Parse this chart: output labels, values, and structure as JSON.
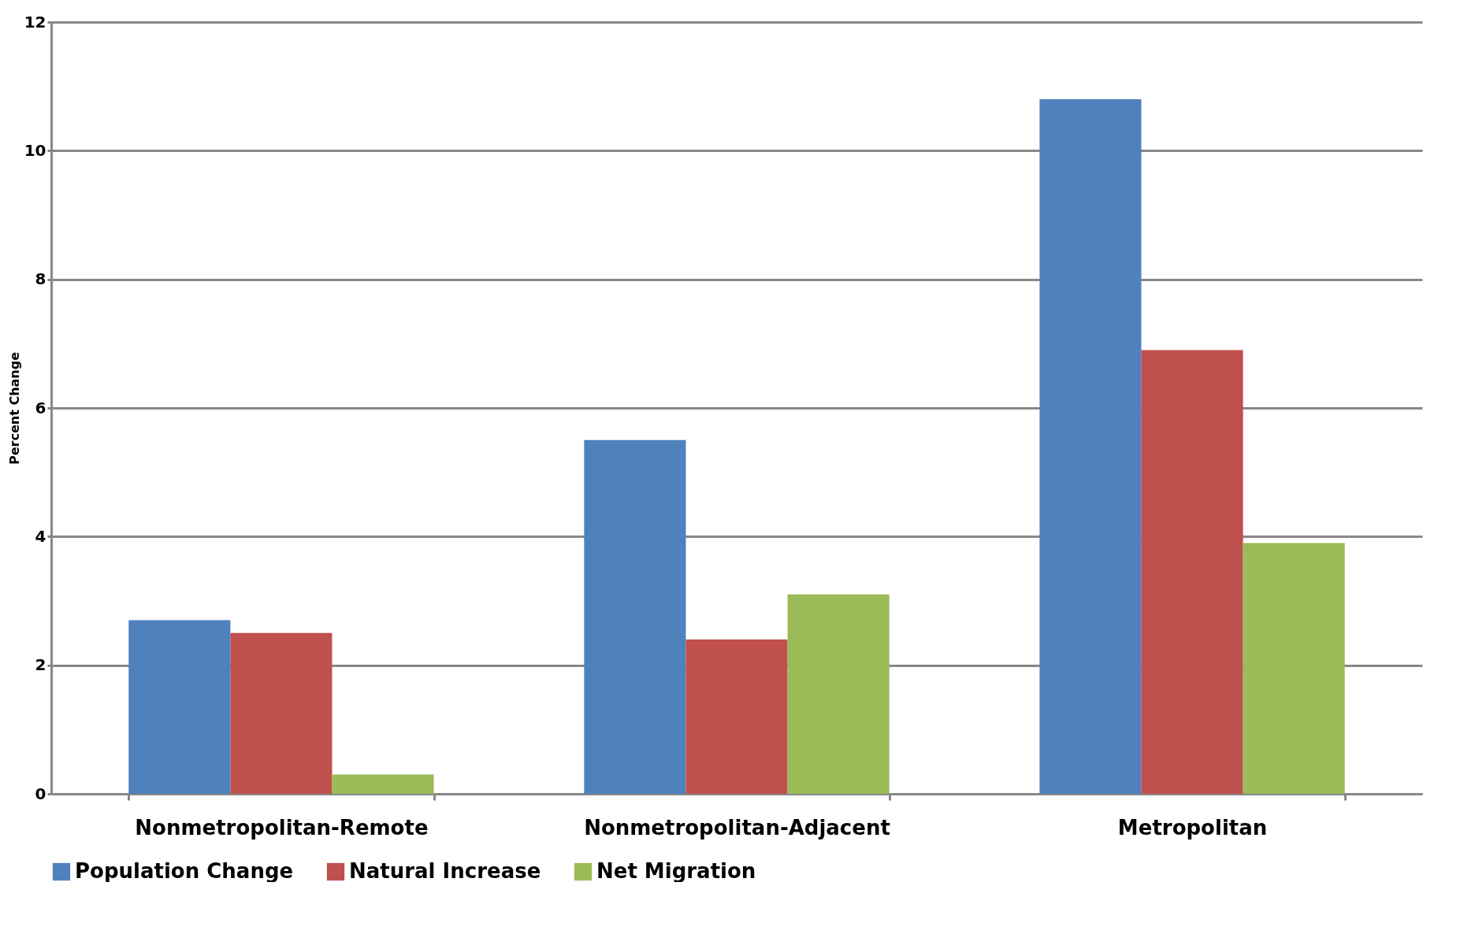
{
  "chart_data": {
    "type": "bar",
    "ylabel": "Percent Change",
    "categories": [
      "Nonmetropolitan-Remote",
      "Nonmetropolitan-Adjacent",
      "Metropolitan"
    ],
    "series": [
      {
        "name": "Population Change",
        "color": "#4f81bd",
        "values": [
          2.7,
          5.5,
          10.8
        ]
      },
      {
        "name": "Natural Increase",
        "color": "#c0504d",
        "values": [
          2.5,
          2.4,
          6.9
        ]
      },
      {
        "name": "Net Migration",
        "color": "#9bbb59",
        "values": [
          0.3,
          3.1,
          3.9
        ]
      }
    ],
    "ylim": [
      0,
      12
    ],
    "yticks": [
      0,
      2,
      4,
      6,
      8,
      10,
      12
    ],
    "grid": "y",
    "legend": "bottom"
  }
}
